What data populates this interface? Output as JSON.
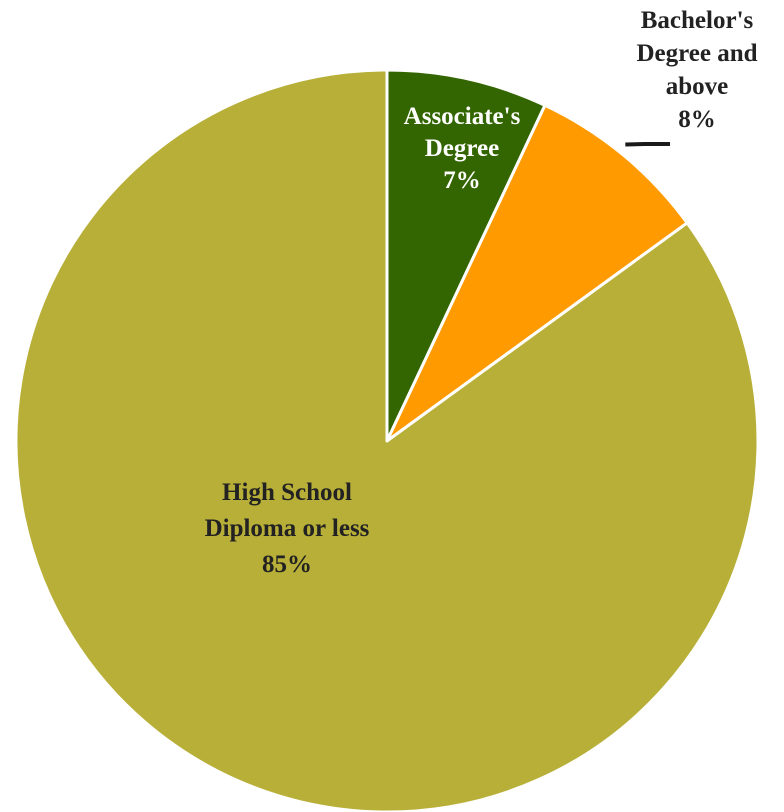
{
  "chart_data": {
    "type": "pie",
    "title": "",
    "start_angle_deg": 0,
    "direction": "clockwise",
    "slices": [
      {
        "label_lines": [
          "Associate's",
          "Degree",
          "7%"
        ],
        "value": 7,
        "color": "#336600",
        "label_color": "#ffffff"
      },
      {
        "label_lines": [
          "Bachelor's",
          "Degree and",
          "above",
          "8%"
        ],
        "value": 8,
        "color": "#ff9a00",
        "label_color": "#222222"
      },
      {
        "label_lines": [
          "High School",
          "Diploma or less",
          "85%"
        ],
        "value": 85,
        "color": "#b8af38",
        "label_color": "#222222"
      }
    ],
    "legend": "none",
    "slice_border_color": "#ffffff"
  }
}
